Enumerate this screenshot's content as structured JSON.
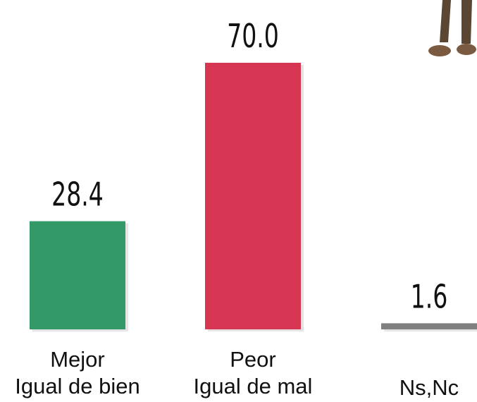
{
  "chart_data": {
    "type": "bar",
    "categories": [
      "Mejor\nIgual de bien",
      "Peor\nIgual de mal",
      "Ns,Nc"
    ],
    "values": [
      28.4,
      70.0,
      1.6
    ],
    "value_labels": [
      "28.4",
      "70.0",
      "1.6"
    ],
    "colors": [
      "#339966",
      "#d63651",
      "#808080"
    ],
    "ylim": [
      0,
      70
    ]
  }
}
